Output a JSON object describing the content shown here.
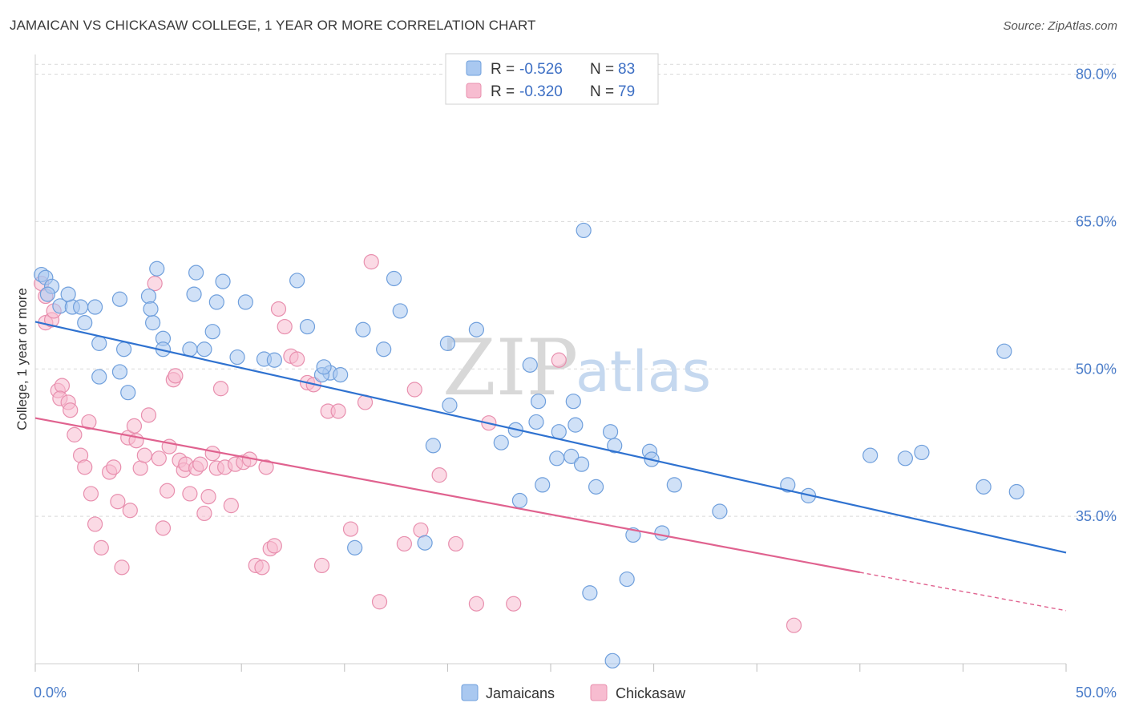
{
  "title": "JAMAICAN VS CHICKASAW COLLEGE, 1 YEAR OR MORE CORRELATION CHART",
  "source": "Source: ZipAtlas.com",
  "watermark": {
    "zip": "ZIP",
    "atlas": "atlas"
  },
  "colors": {
    "jamaicans_fill": "#a9c8f0",
    "jamaicans_stroke": "#6f9fdc",
    "jamaicans_line": "#2f72d0",
    "chickasaw_fill": "#f7bcd0",
    "chickasaw_stroke": "#e88fae",
    "chickasaw_line": "#e0628f",
    "grid": "#d9d9d9",
    "axis_label": "#4a7cc9"
  },
  "legend": {
    "rows": [
      {
        "r_label": "R =",
        "r_value": "-0.526",
        "n_label": "N =",
        "n_value": "83"
      },
      {
        "r_label": "R =",
        "r_value": "-0.320",
        "n_label": "N =",
        "n_value": "79"
      }
    ],
    "bottom": [
      "Jamaicans",
      "Chickasaw"
    ]
  },
  "chart_data": {
    "type": "scatter",
    "title": "JAMAICAN VS CHICKASAW COLLEGE, 1 YEAR OR MORE CORRELATION CHART",
    "xlabel": "",
    "ylabel": "College, 1 year or more",
    "xlim": [
      0,
      50
    ],
    "ylim": [
      20,
      82
    ],
    "x_tick_labels": [
      "0.0%",
      "50.0%"
    ],
    "y_ticks": [
      35,
      50,
      65,
      80
    ],
    "y_tick_labels": [
      "35.0%",
      "50.0%",
      "65.0%",
      "80.0%"
    ],
    "grid": true,
    "legend_position": "top-center",
    "series": [
      {
        "name": "Jamaicans",
        "r": -0.526,
        "n": 83,
        "trend": {
          "x": [
            0,
            50
          ],
          "y": [
            54.8,
            31.3
          ]
        },
        "points": [
          [
            0.3,
            59.6
          ],
          [
            0.5,
            59.3
          ],
          [
            0.8,
            58.4
          ],
          [
            0.6,
            57.6
          ],
          [
            1.2,
            56.4
          ],
          [
            1.8,
            56.3
          ],
          [
            1.6,
            57.6
          ],
          [
            2.2,
            56.3
          ],
          [
            2.9,
            56.3
          ],
          [
            2.4,
            54.7
          ],
          [
            3.1,
            52.6
          ],
          [
            4.3,
            52.0
          ],
          [
            5.5,
            57.4
          ],
          [
            4.1,
            57.1
          ],
          [
            5.7,
            54.7
          ],
          [
            5.6,
            56.1
          ],
          [
            6.2,
            53.1
          ],
          [
            5.9,
            60.2
          ],
          [
            6.2,
            52.0
          ],
          [
            7.5,
            52.0
          ],
          [
            7.7,
            57.6
          ],
          [
            7.8,
            59.8
          ],
          [
            8.2,
            52.0
          ],
          [
            8.6,
            53.8
          ],
          [
            8.8,
            56.8
          ],
          [
            9.1,
            58.9
          ],
          [
            10.2,
            56.8
          ],
          [
            9.8,
            51.2
          ],
          [
            11.1,
            51.0
          ],
          [
            11.6,
            50.9
          ],
          [
            12.7,
            59.0
          ],
          [
            13.2,
            54.3
          ],
          [
            14.3,
            49.6
          ],
          [
            14.8,
            49.4
          ],
          [
            13.9,
            49.4
          ],
          [
            14.0,
            50.2
          ],
          [
            15.9,
            54.0
          ],
          [
            16.9,
            52.0
          ],
          [
            17.4,
            59.2
          ],
          [
            17.7,
            55.9
          ],
          [
            20.0,
            52.6
          ],
          [
            20.1,
            46.3
          ],
          [
            21.4,
            54.0
          ],
          [
            24.0,
            50.4
          ],
          [
            23.3,
            43.8
          ],
          [
            24.4,
            46.7
          ],
          [
            25.3,
            40.9
          ],
          [
            24.3,
            44.6
          ],
          [
            23.5,
            36.6
          ],
          [
            22.6,
            42.5
          ],
          [
            26.0,
            41.1
          ],
          [
            26.1,
            46.7
          ],
          [
            26.2,
            44.3
          ],
          [
            28.1,
            42.2
          ],
          [
            27.9,
            43.6
          ],
          [
            29.8,
            41.6
          ],
          [
            29.9,
            40.8
          ],
          [
            31.0,
            38.2
          ],
          [
            27.2,
            38.0
          ],
          [
            30.4,
            33.3
          ],
          [
            26.6,
            64.1
          ],
          [
            33.2,
            35.5
          ],
          [
            36.5,
            38.2
          ],
          [
            37.5,
            37.1
          ],
          [
            42.2,
            40.9
          ],
          [
            47.0,
            51.8
          ],
          [
            47.6,
            37.5
          ],
          [
            46.0,
            38.0
          ],
          [
            43.0,
            41.5
          ],
          [
            40.5,
            41.2
          ],
          [
            29.0,
            33.1
          ],
          [
            28.7,
            28.6
          ],
          [
            28.0,
            20.3
          ],
          [
            26.9,
            27.2
          ],
          [
            18.9,
            32.3
          ],
          [
            15.5,
            31.8
          ],
          [
            19.3,
            42.2
          ],
          [
            25.4,
            43.6
          ],
          [
            24.6,
            38.2
          ],
          [
            26.5,
            40.3
          ],
          [
            4.5,
            47.6
          ],
          [
            3.1,
            49.2
          ],
          [
            4.1,
            49.7
          ]
        ]
      },
      {
        "name": "Chickasaw",
        "r": -0.32,
        "n": 79,
        "trend": {
          "x": [
            0,
            40
          ],
          "y": [
            45.0,
            29.3
          ]
        },
        "trend_dashed": {
          "x": [
            40,
            50
          ],
          "y": [
            29.3,
            25.4
          ]
        },
        "points": [
          [
            0.3,
            58.7
          ],
          [
            0.5,
            57.4
          ],
          [
            0.5,
            54.7
          ],
          [
            0.8,
            55.0
          ],
          [
            0.9,
            55.9
          ],
          [
            1.1,
            47.8
          ],
          [
            1.3,
            48.3
          ],
          [
            1.2,
            47.0
          ],
          [
            1.6,
            46.6
          ],
          [
            1.7,
            45.8
          ],
          [
            1.9,
            43.3
          ],
          [
            2.2,
            41.2
          ],
          [
            2.4,
            40.0
          ],
          [
            2.6,
            44.6
          ],
          [
            2.7,
            37.3
          ],
          [
            2.9,
            34.2
          ],
          [
            3.2,
            31.8
          ],
          [
            3.6,
            39.5
          ],
          [
            3.8,
            40.0
          ],
          [
            4.0,
            36.5
          ],
          [
            4.2,
            29.8
          ],
          [
            4.5,
            43.0
          ],
          [
            4.6,
            35.6
          ],
          [
            4.8,
            44.2
          ],
          [
            4.9,
            42.7
          ],
          [
            5.1,
            39.9
          ],
          [
            5.3,
            41.2
          ],
          [
            5.5,
            45.3
          ],
          [
            5.8,
            58.7
          ],
          [
            6.0,
            40.9
          ],
          [
            6.2,
            33.8
          ],
          [
            6.4,
            37.6
          ],
          [
            6.5,
            42.1
          ],
          [
            6.7,
            48.9
          ],
          [
            6.8,
            49.3
          ],
          [
            7.0,
            40.7
          ],
          [
            7.2,
            39.7
          ],
          [
            7.3,
            40.3
          ],
          [
            7.5,
            37.3
          ],
          [
            7.8,
            39.9
          ],
          [
            8.0,
            40.3
          ],
          [
            8.2,
            35.3
          ],
          [
            8.4,
            37.0
          ],
          [
            8.6,
            41.4
          ],
          [
            8.8,
            39.9
          ],
          [
            9.0,
            48.0
          ],
          [
            9.2,
            40.0
          ],
          [
            9.5,
            36.1
          ],
          [
            9.7,
            40.3
          ],
          [
            10.1,
            40.5
          ],
          [
            10.4,
            40.8
          ],
          [
            10.7,
            30.0
          ],
          [
            11.0,
            29.8
          ],
          [
            11.2,
            40.0
          ],
          [
            11.4,
            31.7
          ],
          [
            11.6,
            32.0
          ],
          [
            11.8,
            56.1
          ],
          [
            12.1,
            54.3
          ],
          [
            12.4,
            51.3
          ],
          [
            12.7,
            51.0
          ],
          [
            13.2,
            48.6
          ],
          [
            13.5,
            48.4
          ],
          [
            13.9,
            30.0
          ],
          [
            14.2,
            45.7
          ],
          [
            14.7,
            45.7
          ],
          [
            15.3,
            33.7
          ],
          [
            16.0,
            46.6
          ],
          [
            16.3,
            60.9
          ],
          [
            16.7,
            26.3
          ],
          [
            17.9,
            32.2
          ],
          [
            18.4,
            47.9
          ],
          [
            18.7,
            33.6
          ],
          [
            19.6,
            39.2
          ],
          [
            20.4,
            32.2
          ],
          [
            21.4,
            26.1
          ],
          [
            22.0,
            44.5
          ],
          [
            23.2,
            26.1
          ],
          [
            25.4,
            50.9
          ],
          [
            36.8,
            23.9
          ]
        ]
      }
    ]
  }
}
